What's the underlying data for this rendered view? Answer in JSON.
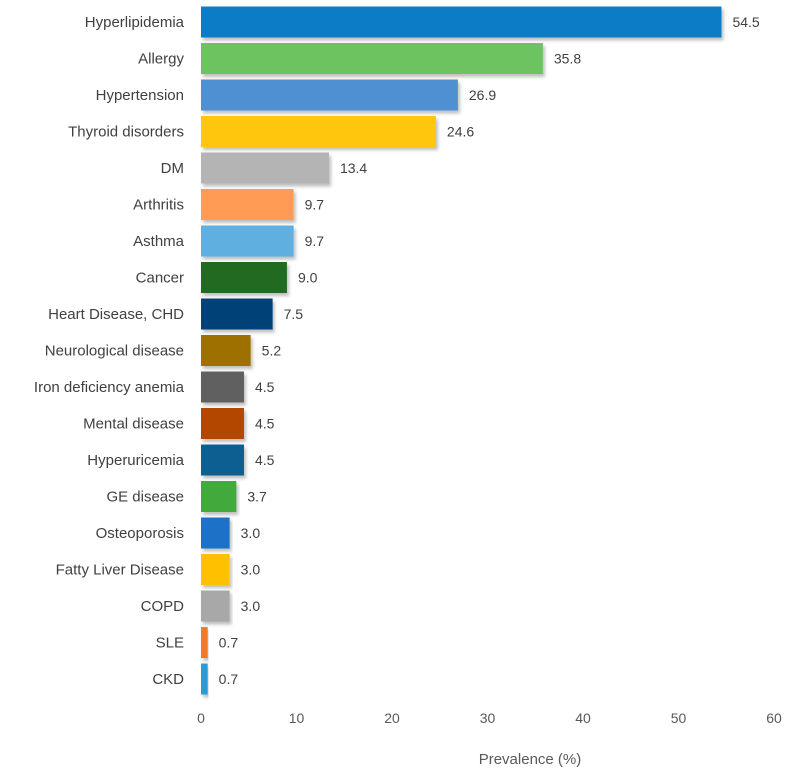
{
  "chart_data": {
    "type": "bar",
    "orientation": "horizontal",
    "title": "",
    "xlabel": "Prevalence (%)",
    "ylabel": "",
    "xlim": [
      0,
      60
    ],
    "xticks": [
      "0",
      "10",
      "20",
      "30",
      "40",
      "50",
      "60"
    ],
    "grid": false,
    "legend": "none",
    "categories": [
      "Hyperlipidemia",
      "Allergy",
      "Hypertension",
      "Thyroid disorders",
      "DM",
      "Arthritis",
      "Asthma",
      "Cancer",
      "Heart Disease, CHD",
      "Neurological disease",
      "Iron deficiency anemia",
      "Mental disease",
      "Hyperuricemia",
      "GE disease",
      "Osteoporosis",
      "Fatty Liver Disease",
      "COPD",
      "SLE",
      "CKD"
    ],
    "values": [
      54.5,
      35.8,
      26.9,
      24.6,
      13.4,
      9.7,
      9.7,
      9.0,
      7.5,
      5.2,
      4.5,
      4.5,
      4.5,
      3.7,
      3.0,
      3.0,
      3.0,
      0.7,
      0.7
    ],
    "value_labels": [
      "54.5",
      "35.8",
      "26.9",
      "24.6",
      "13.4",
      "9.7",
      "9.7",
      "9.0",
      "7.5",
      "5.2",
      "4.5",
      "4.5",
      "4.5",
      "3.7",
      "3.0",
      "3.0",
      "3.0",
      "0.7",
      "0.7"
    ],
    "colors": [
      "#0a7cc6",
      "#6cc35f",
      "#5090d3",
      "#ffc60a",
      "#b4b4b4",
      "#ff9b55",
      "#5eb0e0",
      "#246a24",
      "#064278",
      "#9e7000",
      "#606060",
      "#b34600",
      "#0f5e91",
      "#43aa3c",
      "#1b72c6",
      "#ffc000",
      "#a8a8a8",
      "#f07a2a",
      "#2f9ad4"
    ]
  }
}
